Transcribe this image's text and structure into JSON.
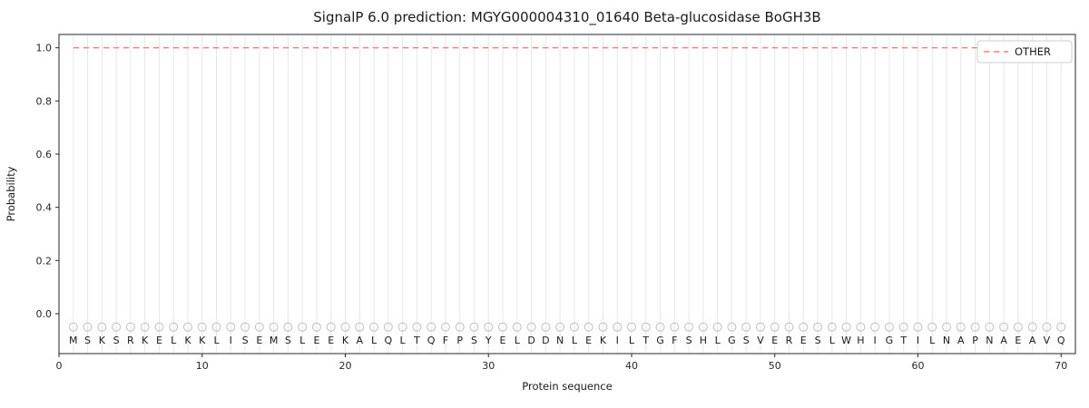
{
  "chart_data": {
    "type": "line",
    "title": "SignalP 6.0 prediction: MGYG000004310_01640 Beta-glucosidase BoGH3B",
    "xlabel": "Protein sequence",
    "ylabel": "Probability",
    "xlim": [
      0,
      71
    ],
    "ylim": [
      -0.15,
      1.05
    ],
    "xticks": [
      0,
      10,
      20,
      30,
      40,
      50,
      60,
      70
    ],
    "yticks": [
      "0.0",
      "0.2",
      "0.4",
      "0.6",
      "0.8",
      "1.0"
    ],
    "sequence": "MSKSRKELKKLISEMSLEEKALQLTQFPSYELDDNLEKILTGFSHLGSVERESLWHIGTILNAPNAEAVQ",
    "sequence_length": 70,
    "marker_value": -0.05,
    "grid": "vertical-per-residue",
    "legend_position": "upper-right",
    "series": [
      {
        "name": "OTHER",
        "style": "dashed",
        "color": "#f08080",
        "constant_value": 1.0,
        "x_range": [
          1,
          70
        ]
      }
    ]
  },
  "colors": {
    "background": "#ffffff",
    "grid": "#e7e7e7",
    "axis": "#262626",
    "marker": "#c0c0c0",
    "letter": "#1a1a1a",
    "tick_label": "#262626",
    "legend_border": "#cccccc",
    "legend_bg": "#ffffff",
    "other_line": "#f08080"
  }
}
